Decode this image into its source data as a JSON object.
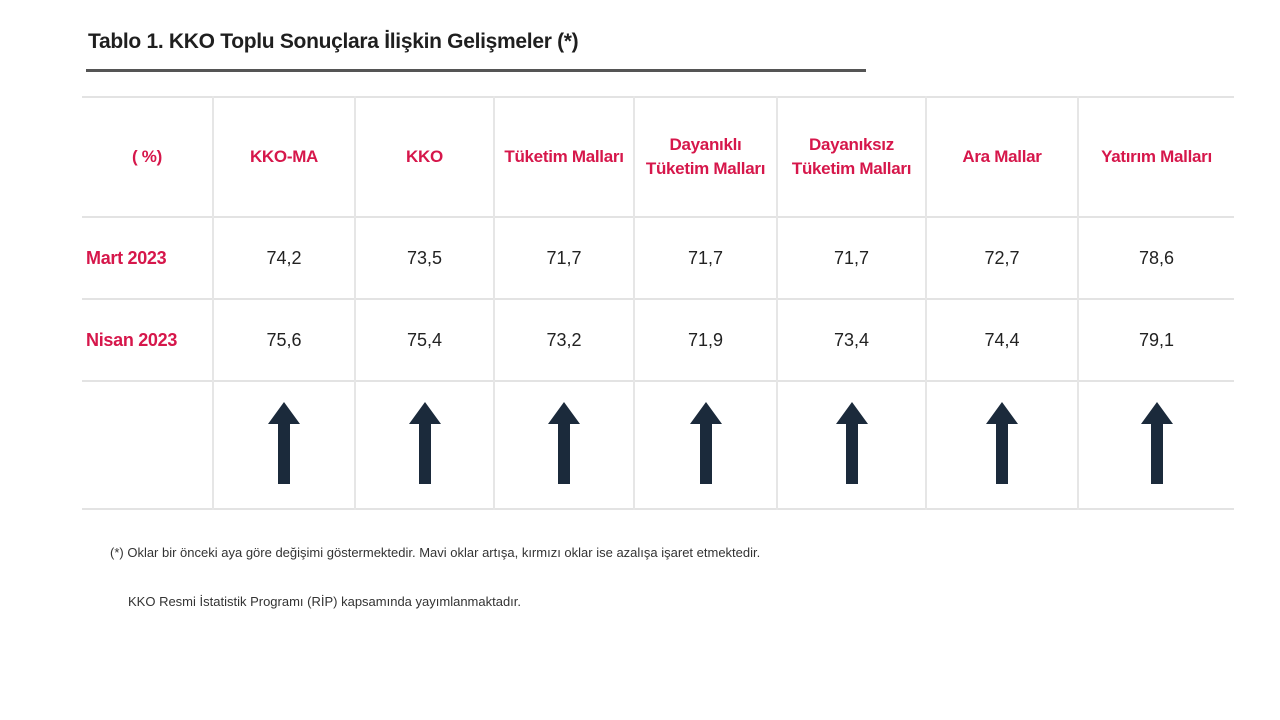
{
  "title": "Tablo 1. KKO Toplu Sonuçlara İlişkin Gelişmeler (*)",
  "table": {
    "corner_label": "( %)",
    "columns": [
      {
        "line1": "KKO-MA",
        "line2": ""
      },
      {
        "line1": "KKO",
        "line2": ""
      },
      {
        "line1": "Tüketim Malları",
        "line2": ""
      },
      {
        "line1": "Dayanıklı",
        "line2": "Tüketim Malları"
      },
      {
        "line1": "Dayanıksız",
        "line2": "Tüketim Malları"
      },
      {
        "line1": "Ara Mallar",
        "line2": ""
      },
      {
        "line1": "Yatırım Malları",
        "line2": ""
      }
    ],
    "rows": [
      {
        "label": "Mart 2023",
        "values": [
          "74,2",
          "73,5",
          "71,7",
          "71,7",
          "71,7",
          "72,7",
          "78,6"
        ]
      },
      {
        "label": "Nisan 2023",
        "values": [
          "75,6",
          "75,4",
          "73,2",
          "71,9",
          "73,4",
          "74,4",
          "79,1"
        ]
      }
    ],
    "arrow_direction": "up",
    "arrow_color": "#1b2a3b"
  },
  "notes": {
    "footnote": "(*) Oklar bir önceki aya göre değişimi göstermektedir. Mavi oklar artışa, kırmızı oklar ise azalışa işaret etmektedir.",
    "program": "KKO Resmi İstatistik Programı (RİP) kapsamında yayımlanmaktadır."
  },
  "colors": {
    "accent": "#d6174b",
    "text": "#222222"
  }
}
